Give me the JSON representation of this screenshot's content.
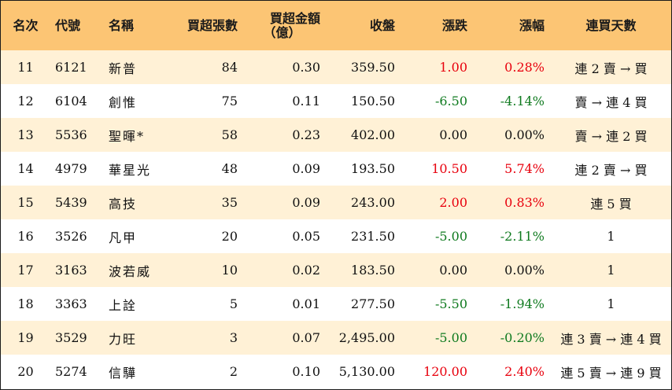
{
  "headers": {
    "rank": "名次",
    "code": "代號",
    "name": "名稱",
    "buy_lots": "買超張數",
    "buy_amount_line1": "買超金額",
    "buy_amount_line2": "（億）",
    "close": "收盤",
    "change": "漲跌",
    "pct": "漲幅",
    "days": "連買天數"
  },
  "colors": {
    "header_bg": "#fcc574",
    "stripe_bg": "#fff1d6",
    "up": "#e8000d",
    "down": "#0f7a1f"
  },
  "rows": [
    {
      "rank": "11",
      "code": "6121",
      "name": "新普",
      "lots": "84",
      "amount": "0.30",
      "close": "359.50",
      "change": "1.00",
      "pct": "0.28%",
      "trend": "up",
      "days": "連 2 賣 → 買"
    },
    {
      "rank": "12",
      "code": "6104",
      "name": "創惟",
      "lots": "75",
      "amount": "0.11",
      "close": "150.50",
      "change": "-6.50",
      "pct": "-4.14%",
      "trend": "down",
      "days": "賣 → 連 4 買"
    },
    {
      "rank": "13",
      "code": "5536",
      "name": "聖暉*",
      "lots": "58",
      "amount": "0.23",
      "close": "402.00",
      "change": "0.00",
      "pct": "0.00%",
      "trend": "flat",
      "days": "賣 → 連 2 買"
    },
    {
      "rank": "14",
      "code": "4979",
      "name": "華星光",
      "lots": "48",
      "amount": "0.09",
      "close": "193.50",
      "change": "10.50",
      "pct": "5.74%",
      "trend": "up",
      "days": "連 2 賣 → 買"
    },
    {
      "rank": "15",
      "code": "5439",
      "name": "高技",
      "lots": "35",
      "amount": "0.09",
      "close": "243.00",
      "change": "2.00",
      "pct": "0.83%",
      "trend": "up",
      "days": "連 5 買"
    },
    {
      "rank": "16",
      "code": "3526",
      "name": "凡甲",
      "lots": "20",
      "amount": "0.05",
      "close": "231.50",
      "change": "-5.00",
      "pct": "-2.11%",
      "trend": "down",
      "days": "1"
    },
    {
      "rank": "17",
      "code": "3163",
      "name": "波若威",
      "lots": "10",
      "amount": "0.02",
      "close": "183.50",
      "change": "0.00",
      "pct": "0.00%",
      "trend": "flat",
      "days": "1"
    },
    {
      "rank": "18",
      "code": "3363",
      "name": "上詮",
      "lots": "5",
      "amount": "0.01",
      "close": "277.50",
      "change": "-5.50",
      "pct": "-1.94%",
      "trend": "down",
      "days": "1"
    },
    {
      "rank": "19",
      "code": "3529",
      "name": "力旺",
      "lots": "3",
      "amount": "0.07",
      "close": "2,495.00",
      "change": "-5.00",
      "pct": "-0.20%",
      "trend": "down",
      "days": "連 3 賣 → 連 4 買"
    },
    {
      "rank": "20",
      "code": "5274",
      "name": "信驊",
      "lots": "2",
      "amount": "0.10",
      "close": "5,130.00",
      "change": "120.00",
      "pct": "2.40%",
      "trend": "up",
      "days": "連 5 賣 → 連 9 買"
    }
  ]
}
